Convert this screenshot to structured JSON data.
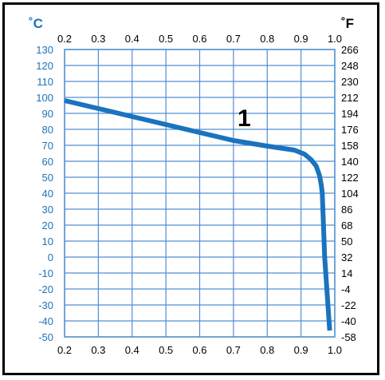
{
  "chart_data": {
    "type": "line",
    "left_unit": "˚C",
    "right_unit": "˚F",
    "x_ticks": [
      "0.2",
      "0.3",
      "0.4",
      "0.5",
      "0.6",
      "0.7",
      "0.8",
      "0.9",
      "1.0"
    ],
    "y_left_ticks": [
      "130",
      "120",
      "110",
      "100",
      "90",
      "80",
      "70",
      "60",
      "50",
      "40",
      "30",
      "20",
      "10",
      "0",
      "-10",
      "-20",
      "-30",
      "-40",
      "-50"
    ],
    "y_right_ticks": [
      "266",
      "248",
      "230",
      "212",
      "194",
      "176",
      "158",
      "140",
      "122",
      "104",
      "86",
      "68",
      "50",
      "32",
      "14",
      "-4",
      "-22",
      "-40",
      "-58"
    ],
    "xlim": [
      0.2,
      1.0
    ],
    "ylim": [
      -50,
      130
    ],
    "grid": true,
    "annotation": "1",
    "series": [
      {
        "color": "#1a73be",
        "x": [
          0.2,
          0.3,
          0.4,
          0.5,
          0.6,
          0.7,
          0.8,
          0.88,
          0.91,
          0.93,
          0.945,
          0.955,
          0.96,
          0.963,
          0.97,
          0.985
        ],
        "y": [
          98,
          93,
          88,
          83,
          78,
          73,
          69.5,
          67,
          64.5,
          61,
          57,
          51,
          45,
          40,
          0,
          -46
        ]
      }
    ]
  }
}
